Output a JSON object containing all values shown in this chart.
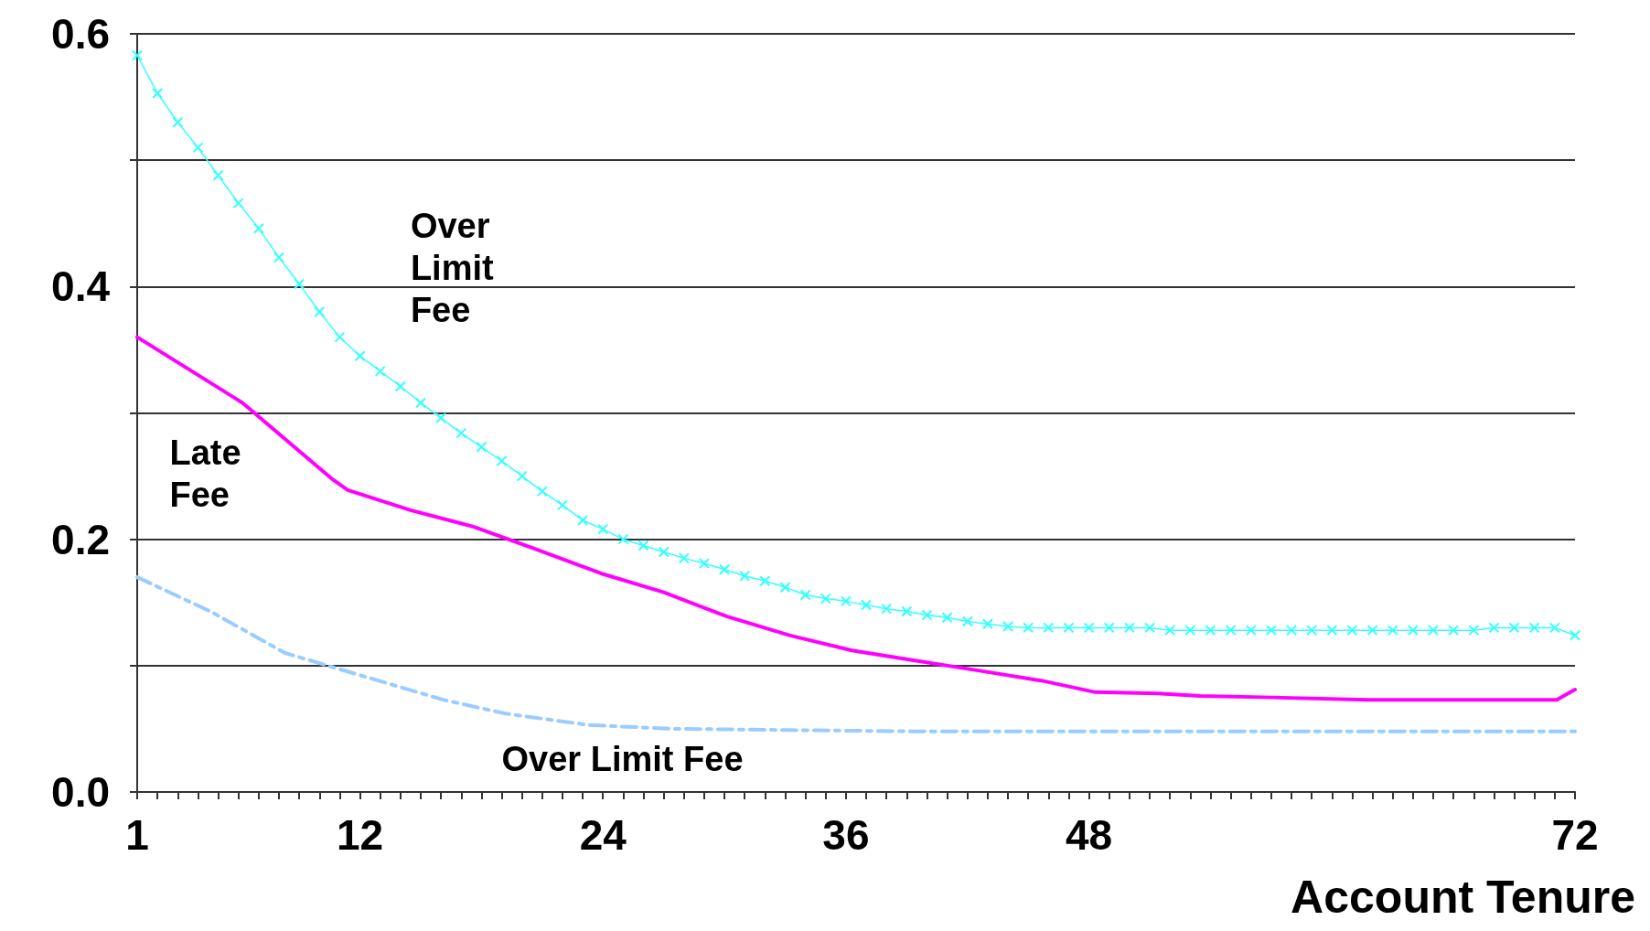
{
  "chart_data": {
    "type": "line",
    "xlabel": "Account Tenure",
    "xlim": [
      1,
      72
    ],
    "xticks": [
      {
        "value": 1,
        "label": "1"
      },
      {
        "value": 2,
        "label": null
      },
      {
        "value": 3,
        "label": null
      },
      {
        "value": 4,
        "label": null
      },
      {
        "value": 5,
        "label": null
      },
      {
        "value": 6,
        "label": null
      },
      {
        "value": 7,
        "label": null
      },
      {
        "value": 8,
        "label": null
      },
      {
        "value": 9,
        "label": null
      },
      {
        "value": 10,
        "label": null
      },
      {
        "value": 11,
        "label": null
      },
      {
        "value": 12,
        "label": "12"
      },
      {
        "value": 13,
        "label": null
      },
      {
        "value": 14,
        "label": null
      },
      {
        "value": 15,
        "label": null
      },
      {
        "value": 16,
        "label": null
      },
      {
        "value": 17,
        "label": null
      },
      {
        "value": 18,
        "label": null
      },
      {
        "value": 19,
        "label": null
      },
      {
        "value": 20,
        "label": null
      },
      {
        "value": 21,
        "label": null
      },
      {
        "value": 22,
        "label": null
      },
      {
        "value": 23,
        "label": null
      },
      {
        "value": 24,
        "label": "24"
      },
      {
        "value": 25,
        "label": null
      },
      {
        "value": 26,
        "label": null
      },
      {
        "value": 27,
        "label": null
      },
      {
        "value": 28,
        "label": null
      },
      {
        "value": 29,
        "label": null
      },
      {
        "value": 30,
        "label": null
      },
      {
        "value": 31,
        "label": null
      },
      {
        "value": 32,
        "label": null
      },
      {
        "value": 33,
        "label": null
      },
      {
        "value": 34,
        "label": null
      },
      {
        "value": 35,
        "label": null
      },
      {
        "value": 36,
        "label": "36"
      },
      {
        "value": 37,
        "label": null
      },
      {
        "value": 38,
        "label": null
      },
      {
        "value": 39,
        "label": null
      },
      {
        "value": 40,
        "label": null
      },
      {
        "value": 41,
        "label": null
      },
      {
        "value": 42,
        "label": null
      },
      {
        "value": 43,
        "label": null
      },
      {
        "value": 44,
        "label": null
      },
      {
        "value": 45,
        "label": null
      },
      {
        "value": 46,
        "label": null
      },
      {
        "value": 47,
        "label": null
      },
      {
        "value": 48,
        "label": "48"
      },
      {
        "value": 49,
        "label": null
      },
      {
        "value": 50,
        "label": null
      },
      {
        "value": 51,
        "label": null
      },
      {
        "value": 52,
        "label": null
      },
      {
        "value": 53,
        "label": null
      },
      {
        "value": 54,
        "label": null
      },
      {
        "value": 55,
        "label": null
      },
      {
        "value": 56,
        "label": null
      },
      {
        "value": 57,
        "label": null
      },
      {
        "value": 58,
        "label": null
      },
      {
        "value": 59,
        "label": null
      },
      {
        "value": 60,
        "label": null
      },
      {
        "value": 61,
        "label": null
      },
      {
        "value": 62,
        "label": null
      },
      {
        "value": 63,
        "label": null
      },
      {
        "value": 64,
        "label": null
      },
      {
        "value": 65,
        "label": null
      },
      {
        "value": 66,
        "label": null
      },
      {
        "value": 67,
        "label": null
      },
      {
        "value": 68,
        "label": null
      },
      {
        "value": 69,
        "label": null
      },
      {
        "value": 70,
        "label": null
      },
      {
        "value": 71,
        "label": null
      },
      {
        "value": 72,
        "label": "72"
      }
    ],
    "ylim": [
      0,
      0.6
    ],
    "yticks": [
      {
        "value": 0,
        "label": "0.0"
      },
      {
        "value": 0.1,
        "label": null
      },
      {
        "value": 0.2,
        "label": "0.2"
      },
      {
        "value": 0.3,
        "label": null
      },
      {
        "value": 0.4,
        "label": "0.4"
      },
      {
        "value": 0.5,
        "label": null
      },
      {
        "value": 0.6,
        "label": "0.6"
      }
    ],
    "grid": "y",
    "legend": false,
    "series": [
      {
        "name": "Over Limit Fee",
        "color": "#33ffff",
        "marker": "cross",
        "line_style": "solid",
        "x": [
          1,
          2,
          3,
          4,
          5,
          6,
          7,
          8,
          9,
          10,
          11,
          12,
          13,
          14,
          15,
          16,
          17,
          18,
          19,
          20,
          21,
          22,
          23,
          24,
          25,
          26,
          27,
          28,
          29,
          30,
          31,
          32,
          33,
          34,
          35,
          36,
          37,
          38,
          39,
          40,
          41,
          42,
          43,
          44,
          45,
          46,
          47,
          48,
          49,
          50,
          51,
          52,
          53,
          54,
          55,
          56,
          57,
          58,
          59,
          60,
          61,
          62,
          63,
          64,
          65,
          66,
          67,
          68,
          69,
          70,
          71,
          72
        ],
        "values": [
          0.583,
          0.553,
          0.53,
          0.51,
          0.488,
          0.466,
          0.446,
          0.423,
          0.402,
          0.38,
          0.36,
          0.345,
          0.333,
          0.321,
          0.308,
          0.296,
          0.284,
          0.273,
          0.262,
          0.25,
          0.238,
          0.227,
          0.215,
          0.208,
          0.2,
          0.195,
          0.19,
          0.185,
          0.181,
          0.176,
          0.171,
          0.167,
          0.162,
          0.156,
          0.153,
          0.151,
          0.148,
          0.145,
          0.143,
          0.14,
          0.138,
          0.135,
          0.133,
          0.131,
          0.13,
          0.13,
          0.13,
          0.13,
          0.13,
          0.13,
          0.13,
          0.128,
          0.128,
          0.128,
          0.128,
          0.128,
          0.128,
          0.128,
          0.128,
          0.128,
          0.128,
          0.128,
          0.128,
          0.128,
          0.128,
          0.128,
          0.128,
          0.13,
          0.13,
          0.13,
          0.13,
          0.124
        ]
      },
      {
        "name": "Late Fee",
        "color": "#ff00ff",
        "marker": "none",
        "line_style": "solid",
        "x": [
          1,
          6.2,
          10.6,
          11.4,
          14.5,
          17.6,
          20.7,
          23.9,
          27,
          30.1,
          33.2,
          36.3,
          39.4,
          42.6,
          45.7,
          48.3,
          51.4,
          53.5,
          56.6,
          61.8,
          71.1,
          72
        ],
        "values": [
          0.36,
          0.308,
          0.248,
          0.239,
          0.223,
          0.21,
          0.192,
          0.173,
          0.158,
          0.139,
          0.124,
          0.112,
          0.104,
          0.096,
          0.088,
          0.079,
          0.078,
          0.076,
          0.075,
          0.073,
          0.073,
          0.081
        ]
      },
      {
        "name": "Over Limit Fee",
        "color": "#99ccff",
        "marker": "none",
        "line_style": "dashed",
        "x": [
          1,
          4.6,
          8.3,
          16.1,
          19.2,
          23.3,
          27.5,
          33.2,
          39.4,
          72
        ],
        "values": [
          0.17,
          0.143,
          0.11,
          0.073,
          0.062,
          0.053,
          0.05,
          0.049,
          0.048,
          0.048
        ]
      }
    ]
  }
}
